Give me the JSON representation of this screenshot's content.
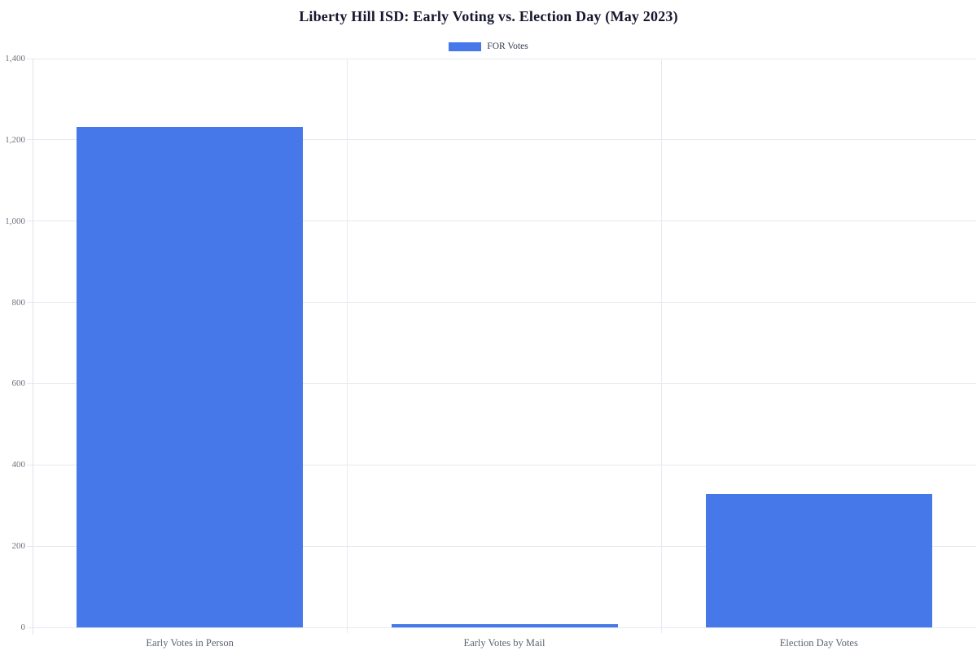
{
  "title": "Liberty Hill ISD: Early Voting vs. Election Day (May 2023)",
  "legend": {
    "label": "FOR Votes",
    "swatch_color": "#4678ea"
  },
  "chart_data": {
    "type": "bar",
    "categories": [
      "Early Votes in Person",
      "Early Votes by Mail",
      "Election Day Votes"
    ],
    "series": [
      {
        "name": "FOR Votes",
        "values": [
          1232,
          8,
          329
        ],
        "color": "#4678ea"
      }
    ],
    "title": "Liberty Hill ISD: Early Voting vs. Election Day (May 2023)",
    "xlabel": "",
    "ylabel": "",
    "ylim": [
      0,
      1400
    ],
    "ytick_interval": 200,
    "yticks": [
      0,
      200,
      400,
      600,
      800,
      1000,
      1200,
      1400
    ],
    "ytick_labels": [
      "0",
      "200",
      "400",
      "600",
      "800",
      "1,000",
      "1,200",
      "1,400"
    ],
    "grid": true,
    "legend_position": "top-center",
    "background": "#ffffff"
  },
  "colors": {
    "bar": "#4678ea",
    "gridline": "#e4e9f0",
    "axis_line": "#dde3ea",
    "title_text": "#16162e",
    "ytick_text": "#6f737e",
    "xtick_text": "#5c6370",
    "legend_text": "#353a4d"
  }
}
